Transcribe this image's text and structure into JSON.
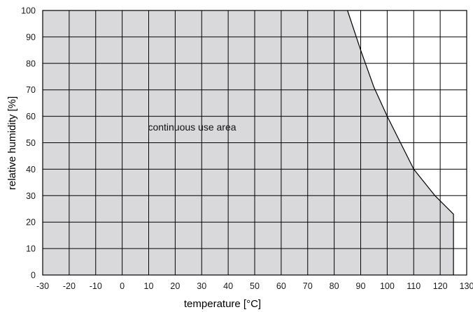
{
  "chart_data": {
    "type": "area",
    "xlabel": "temperature [°C]",
    "ylabel": "relative humidity [%]",
    "xlim": [
      -30,
      130
    ],
    "ylim": [
      0,
      100
    ],
    "x_ticks": [
      -30,
      -20,
      -10,
      0,
      10,
      20,
      30,
      40,
      50,
      60,
      70,
      80,
      90,
      100,
      110,
      120,
      130
    ],
    "y_ticks": [
      0,
      10,
      20,
      30,
      40,
      50,
      60,
      70,
      80,
      90,
      100
    ],
    "grid": true,
    "series": [
      {
        "x": [
          -30,
          85,
          90,
          95,
          100,
          110,
          118,
          125,
          125,
          -30
        ],
        "y": [
          100,
          100,
          85,
          71,
          60,
          40,
          30,
          23,
          0,
          0
        ]
      }
    ],
    "annotations": [
      {
        "text": "continuous use area",
        "x": 15,
        "y": 56
      }
    ],
    "colors": {
      "fill": "#d9d9db",
      "line": "#000000",
      "grid": "#000000"
    }
  }
}
